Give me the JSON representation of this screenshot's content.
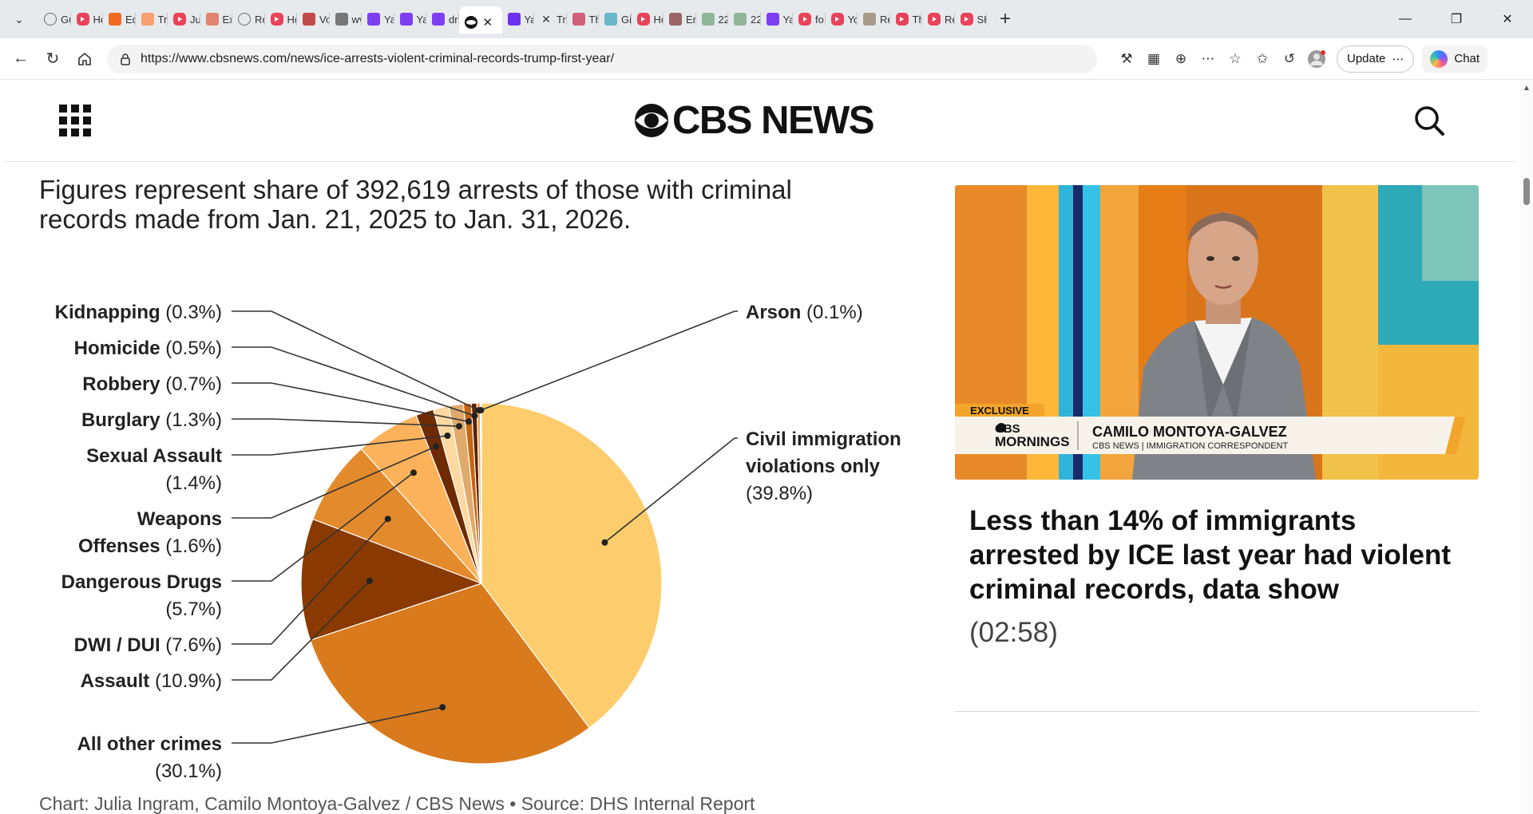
{
  "browser": {
    "tabs": [
      {
        "label": "Gu",
        "icon": "globe-icon",
        "color": "#6b6b6b"
      },
      {
        "label": "Ho",
        "icon": "youtube-icon",
        "color": "#e9435a"
      },
      {
        "label": "Ed",
        "icon": "bookmark-icon",
        "color": "#f06a23"
      },
      {
        "label": "Tri",
        "icon": "bookmark-icon",
        "color": "#f4a070"
      },
      {
        "label": "Jus",
        "icon": "youtube-icon",
        "color": "#e9435a"
      },
      {
        "label": "Ex",
        "icon": "swirl-icon",
        "color": "#e2846f"
      },
      {
        "label": "Ro",
        "icon": "globe-icon",
        "color": "#6b6b6b"
      },
      {
        "label": "Ho",
        "icon": "youtube-icon",
        "color": "#e9435a"
      },
      {
        "label": "Vo",
        "icon": "pdf-icon",
        "color": "#c24a4a"
      },
      {
        "label": "wv",
        "icon": "lock-icon",
        "color": "#777777"
      },
      {
        "label": "Ya",
        "icon": "yahoo-icon",
        "color": "#7e3ff2"
      },
      {
        "label": "Ya",
        "icon": "yahoo-icon",
        "color": "#7e3ff2"
      },
      {
        "label": "dr",
        "icon": "yahoo-icon",
        "color": "#7e3ff2"
      },
      {
        "label": "",
        "icon": "cbs-eye-icon",
        "color": "#111111",
        "active": true
      },
      {
        "label": "Ya",
        "icon": "yahoo-icon",
        "color": "#6d2ff0"
      },
      {
        "label": "Tri",
        "icon": "x-icon",
        "color": "#333333"
      },
      {
        "label": "Th",
        "icon": "wave-icon",
        "color": "#d25f7a"
      },
      {
        "label": "Gi",
        "icon": "snowflake-icon",
        "color": "#6ab6c9"
      },
      {
        "label": "Ho",
        "icon": "youtube-icon",
        "color": "#e9435a"
      },
      {
        "label": "Err",
        "icon": "badge-icon",
        "color": "#9a6565"
      },
      {
        "label": "22",
        "icon": "image-icon",
        "color": "#8fb69a"
      },
      {
        "label": "22",
        "icon": "image-icon",
        "color": "#8fb69a"
      },
      {
        "label": "Ya",
        "icon": "yahoo-icon",
        "color": "#7e3ff2"
      },
      {
        "label": "fo",
        "icon": "youtube-icon",
        "color": "#e9435a"
      },
      {
        "label": "Yo",
        "icon": "youtube-icon",
        "color": "#e9435a"
      },
      {
        "label": "Re",
        "icon": "image-icon",
        "color": "#a99b8c"
      },
      {
        "label": "Th",
        "icon": "youtube-icon",
        "color": "#e9435a"
      },
      {
        "label": "Re",
        "icon": "youtube-icon",
        "color": "#e9435a"
      },
      {
        "label": "SH",
        "icon": "youtube-icon",
        "color": "#e9435a"
      }
    ],
    "url": "https://www.cbsnews.com/news/ice-arrests-violent-criminal-records-trump-first-year/",
    "update_label": "Update",
    "chat_label": "Chat"
  },
  "site": {
    "logo_text": "CBS NEWS"
  },
  "article": {
    "chart_subtitle": "Figures represent share of 392,619 arrests of those with criminal records made from Jan. 21, 2025 to Jan. 31, 2026.",
    "credit": "Chart: Julia Ingram, Camilo Montoya-Galvez / CBS News • Source: DHS Internal Report"
  },
  "chart_data": {
    "type": "pie",
    "title": "",
    "subtitle": "Figures represent share of 392,619 arrests of those with criminal records made from Jan. 21, 2025 to Jan. 31, 2026.",
    "start_angle_deg": 0,
    "direction": "clockwise",
    "slices": [
      {
        "label": "Civil immigration violations only",
        "value": 39.8,
        "display": "(39.8%)",
        "color": "#fdcd6d"
      },
      {
        "label": "All other crimes",
        "value": 30.1,
        "display": "(30.1%)",
        "color": "#d97a1c"
      },
      {
        "label": "Assault",
        "value": 10.9,
        "display": "(10.9%)",
        "color": "#8a3a00"
      },
      {
        "label": "DWI / DUI",
        "value": 7.6,
        "display": "(7.6%)",
        "color": "#e38a2c"
      },
      {
        "label": "Dangerous Drugs",
        "value": 5.7,
        "display": "(5.7%)",
        "color": "#fbb25a"
      },
      {
        "label": "Weapons Offenses",
        "value": 1.6,
        "display": "(1.6%)",
        "color": "#6e2a00"
      },
      {
        "label": "Sexual Assault",
        "value": 1.4,
        "display": "(1.4%)",
        "color": "#fed8a0"
      },
      {
        "label": "Burglary",
        "value": 1.3,
        "display": "(1.3%)",
        "color": "#e0aa6c"
      },
      {
        "label": "Robbery",
        "value": 0.7,
        "display": "(0.7%)",
        "color": "#c8650f"
      },
      {
        "label": "Homicide",
        "value": 0.5,
        "display": "(0.5%)",
        "color": "#5a2300"
      },
      {
        "label": "Kidnapping",
        "value": 0.3,
        "display": "(0.3%)",
        "color": "#f3a248"
      },
      {
        "label": "Arson",
        "value": 0.1,
        "display": "(0.1%)",
        "color": "#fde3b3"
      }
    ]
  },
  "video": {
    "badge": "EXCLUSIVE",
    "show_line1": "CBS",
    "show_line2": "MORNINGS",
    "name": "CAMILO MONTOYA-GALVEZ",
    "role": "CBS NEWS | IMMIGRATION CORRESPONDENT",
    "headline": "Less than 14% of immigrants arrested by ICE last year had violent criminal records, data show",
    "duration": "(02:58)"
  }
}
